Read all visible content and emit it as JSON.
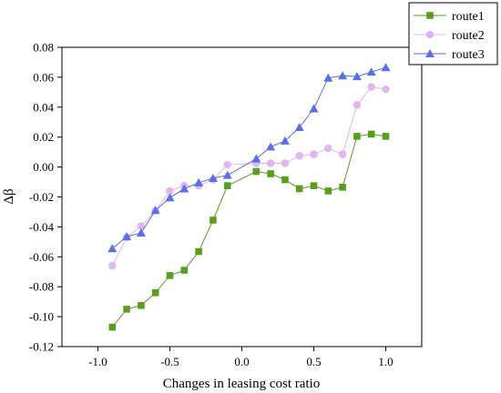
{
  "chart_data": {
    "type": "line",
    "xlabel": "Changes in leasing cost ratio",
    "ylabel": "Δβ",
    "xlim": [
      -1.25,
      1.25
    ],
    "ylim": [
      -0.12,
      0.08
    ],
    "xticks": [
      -1.0,
      -0.5,
      0.0,
      0.5,
      1.0
    ],
    "xtick_labels": [
      "-1.0",
      "-0.5",
      "0.0",
      "0.5",
      "1.0"
    ],
    "yticks": [
      -0.12,
      -0.1,
      -0.08,
      -0.06,
      -0.04,
      -0.02,
      0.0,
      0.02,
      0.04,
      0.06,
      0.08
    ],
    "ytick_labels": [
      "-0.12",
      "-0.10",
      "-0.08",
      "-0.06",
      "-0.04",
      "-0.02",
      "0.00",
      "0.02",
      "0.04",
      "0.06",
      "0.08"
    ],
    "grid": false,
    "legend_position": "top-right",
    "x": [
      -0.9,
      -0.8,
      -0.7,
      -0.6,
      -0.5,
      -0.4,
      -0.3,
      -0.2,
      -0.1,
      0.1,
      0.2,
      0.3,
      0.4,
      0.5,
      0.6,
      0.7,
      0.8,
      0.9,
      1.0
    ],
    "series": [
      {
        "name": "route1",
        "color": "#5a9e1f",
        "marker": "square",
        "values": [
          -0.107,
          -0.095,
          -0.0925,
          -0.084,
          -0.0725,
          -0.069,
          -0.0565,
          -0.0355,
          -0.0125,
          -0.003,
          -0.0045,
          -0.0085,
          -0.0145,
          -0.0125,
          -0.016,
          -0.0135,
          0.0205,
          0.022,
          0.0205
        ]
      },
      {
        "name": "route2",
        "color": "#e2b4f0",
        "marker": "circle",
        "values": [
          -0.066,
          -0.047,
          -0.0395,
          -0.029,
          -0.016,
          -0.0125,
          -0.0125,
          -0.0085,
          0.0015,
          0.0025,
          0.0025,
          0.0025,
          0.0075,
          0.0085,
          0.0125,
          0.0085,
          0.0415,
          0.0535,
          0.052
        ]
      },
      {
        "name": "route3",
        "color": "#5b6fe6",
        "marker": "triangle",
        "values": [
          -0.0545,
          -0.0465,
          -0.044,
          -0.029,
          -0.0205,
          -0.0145,
          -0.0105,
          -0.0075,
          -0.0055,
          0.0055,
          0.0135,
          0.0175,
          0.0265,
          0.039,
          0.0595,
          0.061,
          0.0605,
          0.0635,
          0.0665
        ]
      }
    ]
  }
}
